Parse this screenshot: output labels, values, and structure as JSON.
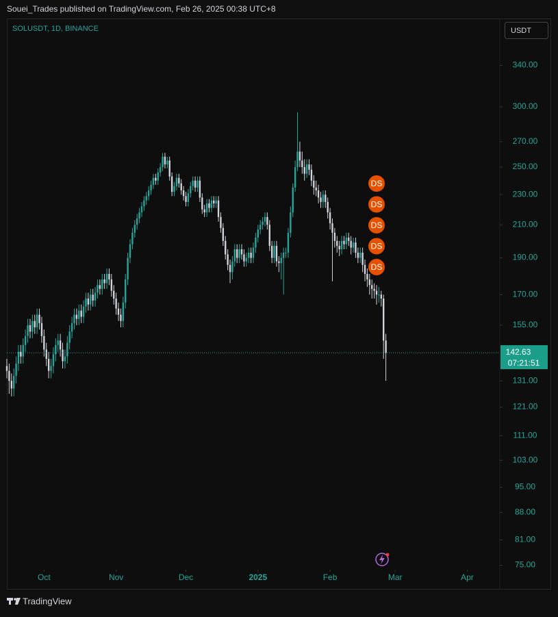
{
  "header": "Souei_Trades published on TradingView.com, Feb 26, 2025 00:38 UTC+8",
  "footer": "TradingView",
  "currency_button": "USDT",
  "chart_data": {
    "type": "candlestick",
    "title": "SOLUSDT, 1D, BINANCE",
    "log_scale": true,
    "up_color": "#26a69a",
    "down_color": "#d1d4dc",
    "xlim": [
      0,
      212
    ],
    "xticks": [
      {
        "value": 16,
        "label": "Oct"
      },
      {
        "value": 47,
        "label": "Nov"
      },
      {
        "value": 77,
        "label": "Dec"
      },
      {
        "value": 108,
        "label": "2025"
      },
      {
        "value": 139,
        "label": "Feb"
      },
      {
        "value": 167,
        "label": "Mar"
      },
      {
        "value": 198,
        "label": "Apr"
      }
    ],
    "ylim": [
      74,
      391
    ],
    "yticks": [
      {
        "value": 340,
        "label": "340.00"
      },
      {
        "value": 300,
        "label": "300.00"
      },
      {
        "value": 270,
        "label": "270.00"
      },
      {
        "value": 250,
        "label": "250.00"
      },
      {
        "value": 230,
        "label": "230.00"
      },
      {
        "value": 210,
        "label": "210.00"
      },
      {
        "value": 190,
        "label": "190.00"
      },
      {
        "value": 170,
        "label": "170.00"
      },
      {
        "value": 155,
        "label": "155.00"
      },
      {
        "value": 131,
        "label": "131.00"
      },
      {
        "value": 121,
        "label": "121.00"
      },
      {
        "value": 111,
        "label": "111.00"
      },
      {
        "value": 103,
        "label": "103.00"
      },
      {
        "value": 95,
        "label": "95.00"
      },
      {
        "value": 88,
        "label": "88.00"
      },
      {
        "value": 81,
        "label": "81.00"
      },
      {
        "value": 75,
        "label": "75.00"
      }
    ],
    "last_price": 142.63,
    "countdown": "07:21:51",
    "markers": [
      "DS",
      "DS",
      "DS",
      "DS",
      "DS"
    ],
    "open": [
      137,
      135,
      131,
      128,
      133,
      138,
      143,
      141,
      146,
      150,
      155,
      152,
      157,
      154,
      160,
      156,
      150,
      144,
      140,
      135,
      137,
      142,
      146,
      148,
      144,
      139,
      141,
      147,
      152,
      156,
      160,
      158,
      162,
      159,
      164,
      168,
      165,
      170,
      167,
      171,
      175,
      173,
      178,
      176,
      181,
      178,
      172,
      168,
      163,
      160,
      157,
      166,
      178,
      190,
      198,
      205,
      210,
      214,
      218,
      222,
      226,
      229,
      233,
      237,
      242,
      240,
      246,
      250,
      258,
      252,
      255,
      243,
      232,
      236,
      242,
      238,
      233,
      229,
      225,
      231,
      236,
      240,
      235,
      240,
      228,
      220,
      218,
      224,
      221,
      226,
      224,
      226,
      215,
      208,
      200,
      192,
      186,
      182,
      188,
      195,
      190,
      195,
      192,
      188,
      190,
      193,
      190,
      196,
      202,
      207,
      210,
      212,
      215,
      210,
      197,
      190,
      197,
      188,
      187,
      190,
      193,
      193,
      205,
      218,
      235,
      250,
      262,
      255,
      250,
      245,
      252,
      248,
      240,
      235,
      233,
      228,
      225,
      230,
      225,
      218,
      211,
      205,
      200,
      197,
      195,
      200,
      198,
      202,
      200,
      196,
      199,
      193,
      190,
      193,
      186,
      181,
      178,
      175,
      173,
      172,
      170,
      170,
      168,
      148
    ],
    "high": [
      140,
      138,
      134,
      136,
      141,
      146,
      146,
      149,
      153,
      158,
      158,
      160,
      160,
      163,
      163,
      159,
      153,
      147,
      143,
      140,
      145,
      149,
      151,
      151,
      147,
      144,
      150,
      155,
      159,
      163,
      163,
      165,
      165,
      167,
      171,
      171,
      173,
      173,
      174,
      178,
      178,
      181,
      181,
      184,
      184,
      181,
      175,
      171,
      166,
      163,
      169,
      181,
      193,
      201,
      208,
      213,
      217,
      221,
      225,
      229,
      232,
      236,
      240,
      245,
      245,
      249,
      253,
      261,
      261,
      258,
      258,
      246,
      239,
      245,
      245,
      241,
      236,
      232,
      234,
      239,
      243,
      243,
      243,
      243,
      231,
      223,
      227,
      227,
      229,
      229,
      229,
      229,
      218,
      211,
      203,
      195,
      189,
      191,
      198,
      198,
      198,
      198,
      195,
      193,
      196,
      196,
      199,
      205,
      210,
      213,
      215,
      218,
      218,
      213,
      200,
      200,
      200,
      191,
      193,
      196,
      196,
      208,
      222,
      238,
      255,
      295,
      270,
      262,
      256,
      256,
      256,
      252,
      244,
      240,
      237,
      232,
      233,
      233,
      228,
      221,
      214,
      208,
      203,
      200,
      203,
      203,
      205,
      205,
      203,
      202,
      202,
      196,
      196,
      196,
      189,
      184,
      181,
      178,
      176,
      175,
      174,
      172,
      170,
      151
    ],
    "low": [
      132,
      126,
      125,
      125,
      130,
      135,
      138,
      138,
      143,
      147,
      149,
      149,
      151,
      151,
      153,
      147,
      141,
      137,
      132,
      132,
      134,
      139,
      143,
      141,
      136,
      136,
      138,
      144,
      149,
      153,
      155,
      155,
      156,
      156,
      161,
      162,
      162,
      164,
      164,
      168,
      170,
      170,
      173,
      173,
      175,
      169,
      165,
      160,
      157,
      154,
      154,
      163,
      175,
      187,
      195,
      202,
      207,
      211,
      215,
      219,
      223,
      226,
      230,
      234,
      237,
      237,
      243,
      247,
      249,
      249,
      240,
      229,
      229,
      233,
      235,
      230,
      226,
      222,
      222,
      228,
      233,
      232,
      232,
      225,
      217,
      215,
      215,
      218,
      218,
      221,
      221,
      212,
      205,
      197,
      189,
      183,
      176,
      178,
      185,
      187,
      187,
      189,
      185,
      185,
      187,
      187,
      187,
      193,
      199,
      204,
      207,
      209,
      207,
      194,
      187,
      187,
      185,
      182,
      178,
      170,
      190,
      190,
      202,
      215,
      232,
      247,
      250,
      245,
      240,
      242,
      244,
      236,
      230,
      229,
      224,
      221,
      221,
      221,
      214,
      207,
      177,
      196,
      193,
      191,
      192,
      195,
      195,
      197,
      192,
      193,
      190,
      187,
      187,
      182,
      177,
      174,
      170,
      168,
      168,
      165,
      166,
      164,
      140,
      131
    ],
    "close": [
      135,
      131,
      128,
      133,
      138,
      143,
      141,
      146,
      150,
      155,
      152,
      157,
      154,
      160,
      156,
      150,
      144,
      140,
      135,
      137,
      142,
      146,
      148,
      144,
      139,
      141,
      147,
      152,
      156,
      160,
      158,
      162,
      159,
      164,
      168,
      165,
      170,
      167,
      171,
      175,
      173,
      178,
      176,
      181,
      178,
      172,
      168,
      163,
      160,
      157,
      166,
      178,
      190,
      198,
      205,
      210,
      214,
      218,
      222,
      226,
      229,
      233,
      237,
      242,
      240,
      246,
      250,
      258,
      252,
      255,
      243,
      232,
      236,
      242,
      238,
      233,
      229,
      225,
      231,
      236,
      240,
      235,
      240,
      228,
      220,
      218,
      224,
      221,
      226,
      224,
      226,
      215,
      208,
      200,
      192,
      186,
      182,
      188,
      195,
      190,
      195,
      192,
      188,
      190,
      193,
      190,
      196,
      202,
      207,
      210,
      212,
      215,
      210,
      197,
      190,
      197,
      188,
      187,
      190,
      193,
      193,
      205,
      218,
      235,
      250,
      262,
      255,
      250,
      245,
      252,
      248,
      240,
      235,
      233,
      228,
      225,
      230,
      225,
      218,
      211,
      205,
      200,
      197,
      195,
      200,
      198,
      202,
      200,
      196,
      199,
      193,
      190,
      193,
      186,
      181,
      178,
      175,
      173,
      172,
      170,
      170,
      168,
      148,
      142.63
    ]
  }
}
